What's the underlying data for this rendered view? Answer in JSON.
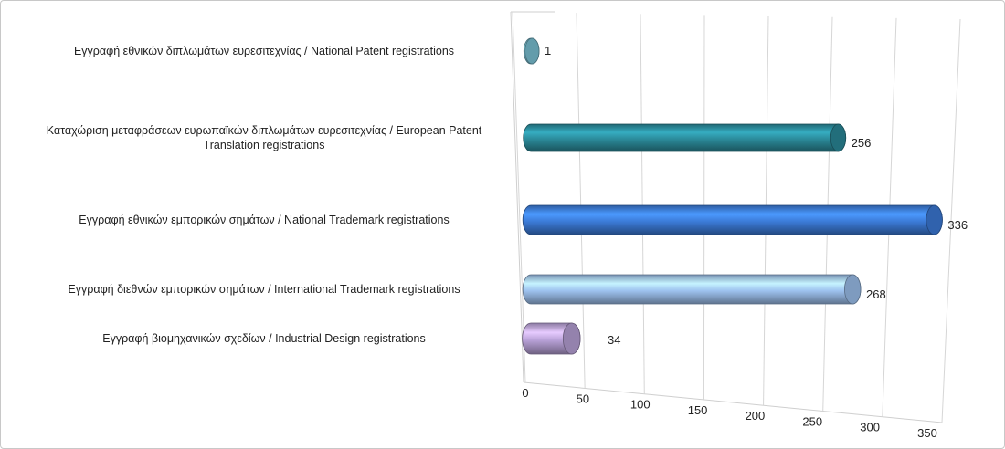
{
  "chart_data": {
    "type": "bar",
    "orientation": "horizontal",
    "style": "3d-cylinder",
    "categories": [
      "Εγγραφή  εθνικών διπλωμάτων ευρεσιτεχνίας / National Patent registrations",
      "Καταχώριση μεταφράσεων ευρωπαϊκών διπλωμάτων ευρεσιτεχνίας / European Patent Translation registrations",
      "Εγγραφή  εθνικών εμπορικών σημάτων / National Trademark registrations",
      "Εγγραφή  διεθνών εμπορικών σημάτων / International Trademark registrations",
      "Εγγραφή  βιομηχανικών σχεδίων / Industrial Design registrations"
    ],
    "values": [
      1,
      256,
      336,
      268,
      34
    ],
    "colors": [
      "#7cc3d6",
      "#2b8a9a",
      "#3c7bd8",
      "#9ec2ef",
      "#b9a2d8"
    ],
    "xlim": [
      0,
      350
    ],
    "xticks": [
      0,
      50,
      100,
      150,
      200,
      250,
      300,
      350
    ],
    "grid": true
  }
}
